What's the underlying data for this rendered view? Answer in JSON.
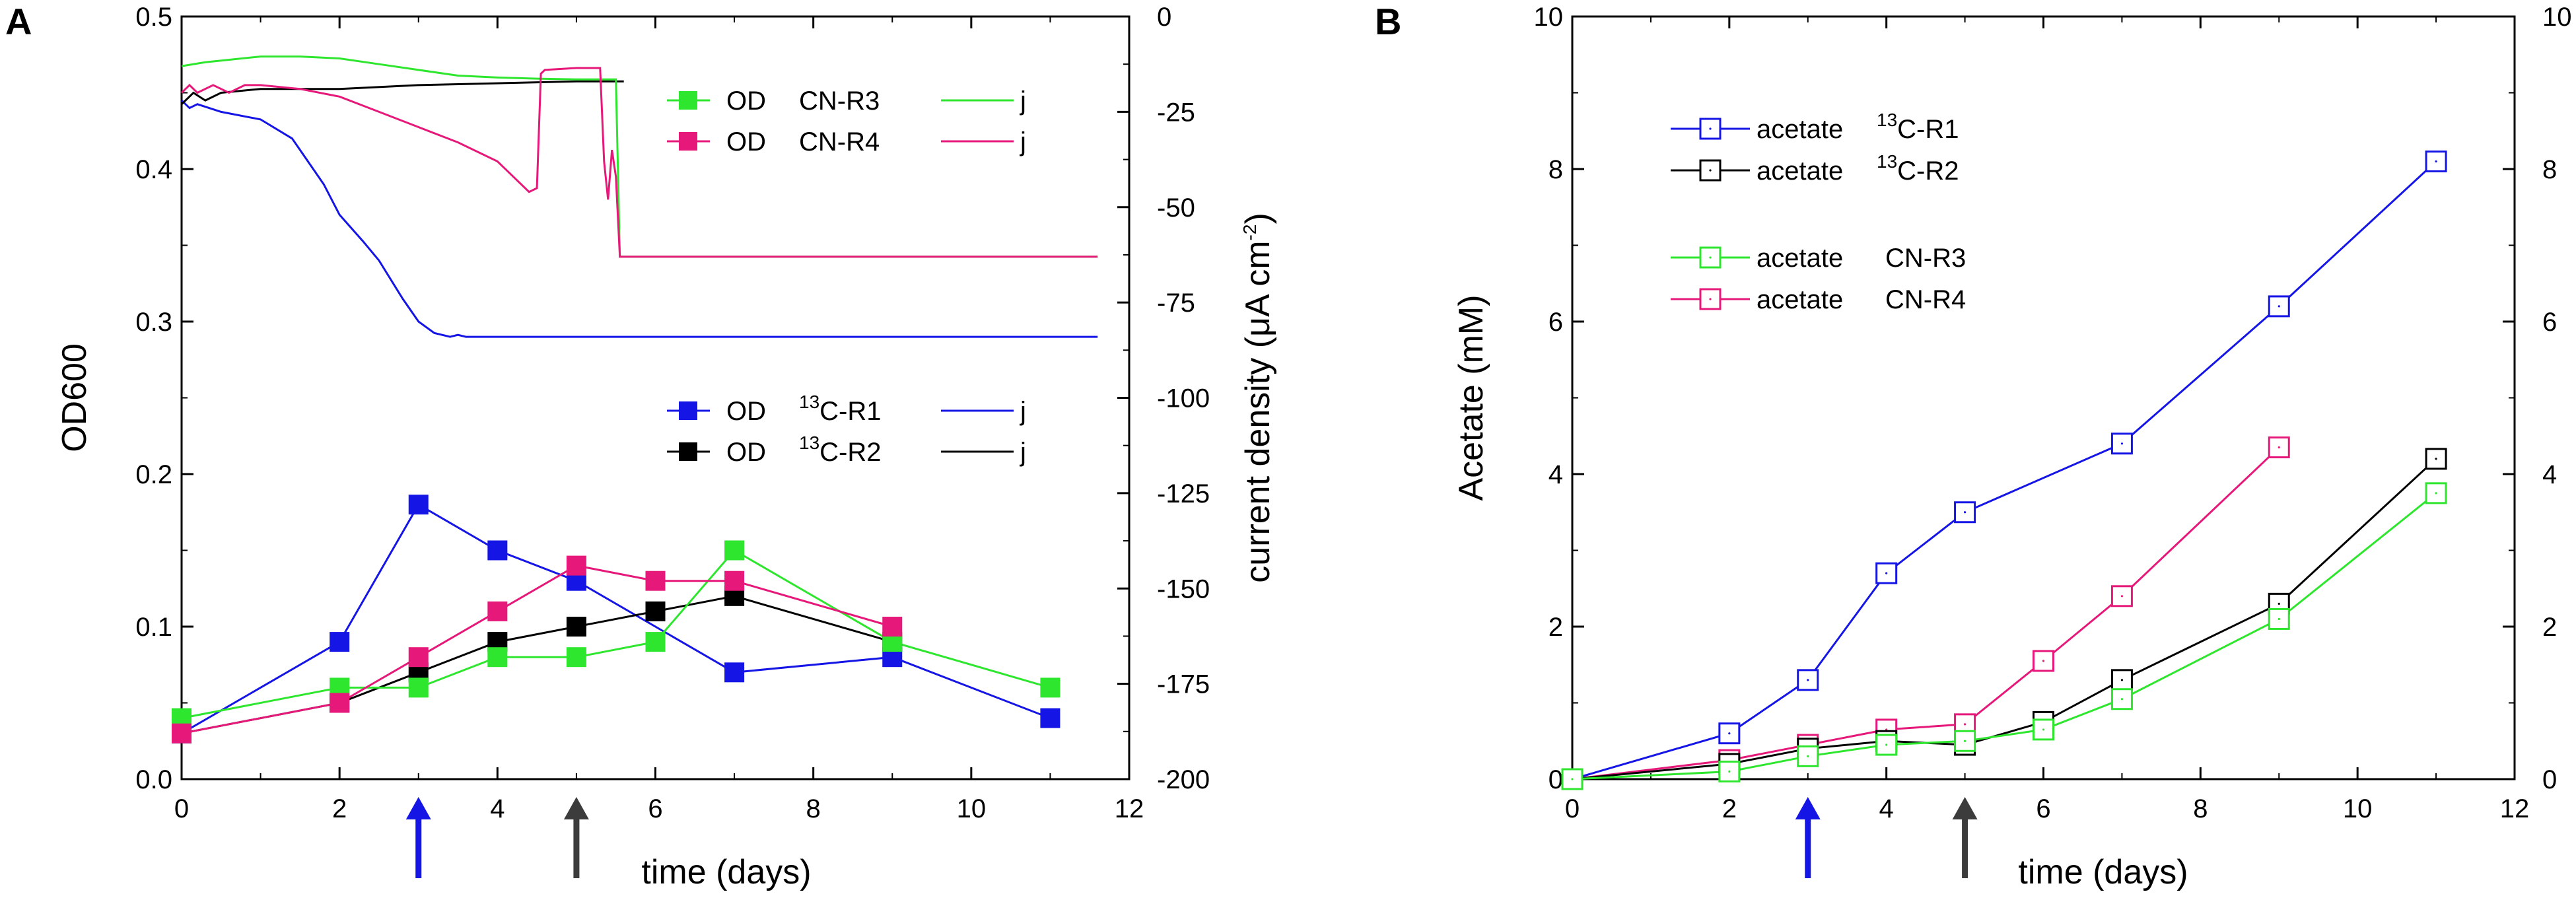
{
  "panel_a_label": "A",
  "panel_b_label": "B",
  "colors": {
    "R1": "#1515e6",
    "R2": "#000000",
    "R3": "#2ee62e",
    "R4": "#e6197a",
    "arrow_blue": "#1515e6",
    "arrow_gray": "#3c3c3c"
  },
  "chart_data": [
    {
      "id": "A",
      "type": "line",
      "xlabel": "time (days)",
      "ylabel": "OD600",
      "y2label_main": "current density (",
      "y2label_unit": "μA cm",
      "y2label_sup": "-2",
      "y2label_end": ")",
      "xlim": [
        0,
        12
      ],
      "ylim": [
        0,
        0.5
      ],
      "y2lim": [
        -200,
        0
      ],
      "xticks": [
        0,
        2,
        4,
        6,
        8,
        10,
        12
      ],
      "yticks": [
        0.0,
        0.1,
        0.2,
        0.3,
        0.4,
        0.5
      ],
      "ytick_labels": [
        "0.0",
        "0.1",
        "0.2",
        "0.3",
        "0.4",
        "0.5"
      ],
      "y2ticks": [
        0,
        -25,
        -50,
        -75,
        -100,
        -125,
        -150,
        -175,
        -200
      ],
      "od_series": [
        {
          "key": "R1",
          "x": [
            0,
            2,
            3,
            4,
            5,
            7,
            9,
            11
          ],
          "y": [
            0.03,
            0.09,
            0.18,
            0.15,
            0.13,
            0.07,
            0.08,
            0.04
          ]
        },
        {
          "key": "R2",
          "x": [
            0,
            2,
            3,
            4,
            5,
            6,
            7,
            9
          ],
          "y": [
            0.03,
            0.05,
            0.07,
            0.09,
            0.1,
            0.11,
            0.12,
            0.09
          ]
        },
        {
          "key": "R3",
          "x": [
            0,
            2,
            3,
            4,
            5,
            6,
            7,
            9,
            11
          ],
          "y": [
            0.04,
            0.06,
            0.06,
            0.08,
            0.08,
            0.09,
            0.15,
            0.09,
            0.06
          ]
        },
        {
          "key": "R4",
          "x": [
            0,
            2,
            3,
            4,
            5,
            6,
            7,
            9
          ],
          "y": [
            0.03,
            0.05,
            0.08,
            0.11,
            0.14,
            0.13,
            0.13,
            0.1
          ]
        }
      ],
      "current_series": [
        {
          "key": "R1",
          "t": [
            0,
            0.1,
            0.2,
            0.5,
            1.0,
            1.4,
            1.8,
            2.0,
            2.3,
            2.5,
            2.8,
            3.0,
            3.2,
            3.4,
            3.5,
            3.6,
            11.6
          ],
          "j": [
            -22,
            -24,
            -23,
            -25,
            -27,
            -32,
            -44,
            -52,
            -59,
            -64,
            -74,
            -80,
            -83,
            -84,
            -83.5,
            -84,
            -84
          ]
        },
        {
          "key": "R2",
          "t": [
            0,
            0.15,
            0.3,
            0.5,
            1,
            2,
            3,
            4,
            5,
            5.6
          ],
          "j": [
            -23,
            -20,
            -22,
            -20,
            -19,
            -19,
            -18,
            -17.5,
            -17,
            -17
          ]
        },
        {
          "key": "R3",
          "t": [
            0,
            0.3,
            1,
            1.5,
            2,
            2.5,
            3,
            3.5,
            4,
            4.5,
            5,
            5.4,
            5.5,
            5.55,
            11.6
          ],
          "j": [
            -13,
            -12,
            -10.5,
            -10.5,
            -11,
            -12.5,
            -14,
            -15.5,
            -16,
            -16.3,
            -16.5,
            -16.5,
            -16.5,
            -63,
            -63
          ]
        },
        {
          "key": "R4",
          "t": [
            0,
            0.1,
            0.2,
            0.4,
            0.6,
            0.8,
            1.0,
            1.5,
            2.0,
            2.5,
            3.0,
            3.5,
            4.0,
            4.3,
            4.4,
            4.5,
            4.55,
            4.6,
            5.0,
            5.3,
            5.35,
            5.4,
            5.45,
            5.5,
            5.55,
            11.6
          ],
          "j": [
            -20,
            -18,
            -20,
            -18,
            -20,
            -18,
            -18,
            -19,
            -21,
            -25,
            -29,
            -33,
            -38,
            -44,
            -46,
            -45,
            -15,
            -14,
            -13.5,
            -13.5,
            -38,
            -48,
            -35,
            -42,
            -63,
            -63
          ]
        }
      ],
      "arrows": [
        {
          "x": 3,
          "color_key": "arrow_blue"
        },
        {
          "x": 5,
          "color_key": "arrow_gray"
        }
      ],
      "legend_top": [
        {
          "key": "R3",
          "od": "OD",
          "name": "CN-R3",
          "j": "j"
        },
        {
          "key": "R4",
          "od": "OD",
          "name": "CN-R4",
          "j": "j"
        }
      ],
      "legend_bottom": [
        {
          "key": "R1",
          "od": "OD",
          "sup": "13",
          "name": "C-R1",
          "j": "j"
        },
        {
          "key": "R2",
          "od": "OD",
          "sup": "13",
          "name": "C-R2",
          "j": "j"
        }
      ]
    },
    {
      "id": "B",
      "type": "line",
      "xlabel": "time (days)",
      "ylabel": "Acetate (mM)",
      "xlim": [
        0,
        12
      ],
      "ylim": [
        0,
        10
      ],
      "xticks": [
        0,
        2,
        4,
        6,
        8,
        10,
        12
      ],
      "yticks": [
        0,
        2,
        4,
        6,
        8,
        10
      ],
      "y2ticks": [
        0,
        2,
        4,
        6,
        8,
        10
      ],
      "series": [
        {
          "key": "R1",
          "x": [
            0,
            2,
            3,
            4,
            5,
            7,
            9,
            11
          ],
          "y": [
            0.0,
            0.6,
            1.3,
            2.7,
            3.5,
            4.4,
            6.2,
            8.1
          ]
        },
        {
          "key": "R2",
          "x": [
            0,
            2,
            3,
            4,
            5,
            6,
            7,
            9,
            11
          ],
          "y": [
            0.0,
            0.2,
            0.4,
            0.5,
            0.45,
            0.75,
            1.3,
            2.3,
            4.2
          ]
        },
        {
          "key": "R3",
          "x": [
            0,
            2,
            3,
            4,
            5,
            6,
            7,
            9,
            11
          ],
          "y": [
            0.0,
            0.1,
            0.3,
            0.45,
            0.5,
            0.65,
            1.05,
            2.1,
            3.75
          ]
        },
        {
          "key": "R4",
          "x": [
            0,
            2,
            3,
            4,
            5,
            6,
            7,
            9
          ],
          "y": [
            0.0,
            0.25,
            0.45,
            0.65,
            0.72,
            1.55,
            2.4,
            4.35
          ]
        }
      ],
      "arrows": [
        {
          "x": 3,
          "color_key": "arrow_blue"
        },
        {
          "x": 5,
          "color_key": "arrow_gray"
        }
      ],
      "legend": [
        {
          "key": "R1",
          "label": "acetate",
          "sup": "13",
          "name": "C-R1"
        },
        {
          "key": "R2",
          "label": "acetate",
          "sup": "13",
          "name": "C-R2"
        },
        {
          "key": "R3",
          "label": "acetate",
          "sup": "",
          "name": "CN-R3"
        },
        {
          "key": "R4",
          "label": "acetate",
          "sup": "",
          "name": "CN-R4"
        }
      ]
    }
  ]
}
